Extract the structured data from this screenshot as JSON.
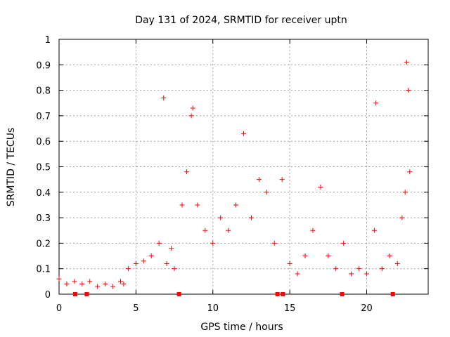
{
  "chart_data": {
    "type": "scatter",
    "title": "Day 131 of 2024, SRMTID for receiver uptn",
    "xlabel": "GPS time / hours",
    "ylabel": "SRMTID / TECUs",
    "xlim": [
      0,
      24
    ],
    "ylim": [
      0,
      1
    ],
    "x_ticks": [
      0,
      5,
      10,
      15,
      20
    ],
    "x_tick_labels": [
      "0",
      "5",
      "10",
      "15",
      "20"
    ],
    "y_ticks": [
      0,
      0.1,
      0.2,
      0.3,
      0.4,
      0.5,
      0.6,
      0.7,
      0.8,
      0.9,
      1
    ],
    "y_tick_labels": [
      "0",
      "0.1",
      "0.2",
      "0.3",
      "0.4",
      "0.5",
      "0.6",
      "0.7",
      "0.8",
      "0.9",
      "1"
    ],
    "grid": true,
    "marker": "+",
    "color": "#ff0000",
    "gap_markers_x": [
      1.05,
      1.8,
      7.8,
      14.2,
      14.55,
      18.4,
      21.7
    ],
    "series": [
      {
        "name": "SRMTID",
        "x": [
          0.0,
          0.5,
          1.0,
          1.5,
          2.0,
          2.5,
          3.0,
          3.5,
          4.0,
          4.2,
          4.5,
          5.0,
          5.5,
          6.0,
          6.5,
          6.8,
          7.0,
          7.3,
          7.5,
          8.0,
          8.3,
          8.6,
          8.7,
          9.0,
          9.5,
          10.0,
          10.5,
          11.0,
          11.5,
          12.0,
          12.5,
          13.0,
          13.5,
          14.0,
          14.5,
          15.0,
          15.5,
          16.0,
          16.5,
          17.0,
          17.5,
          18.0,
          18.5,
          19.0,
          19.5,
          20.0,
          20.5,
          20.6,
          21.0,
          21.5,
          22.0,
          22.3,
          22.5,
          22.6,
          22.7,
          22.8
        ],
        "y": [
          0.06,
          0.04,
          0.05,
          0.04,
          0.05,
          0.03,
          0.04,
          0.03,
          0.05,
          0.04,
          0.1,
          0.12,
          0.13,
          0.15,
          0.2,
          0.77,
          0.12,
          0.18,
          0.1,
          0.35,
          0.48,
          0.7,
          0.73,
          0.35,
          0.25,
          0.2,
          0.3,
          0.25,
          0.35,
          0.63,
          0.3,
          0.45,
          0.4,
          0.2,
          0.45,
          0.12,
          0.08,
          0.15,
          0.25,
          0.42,
          0.15,
          0.1,
          0.2,
          0.08,
          0.1,
          0.08,
          0.25,
          0.75,
          0.1,
          0.15,
          0.12,
          0.3,
          0.4,
          0.91,
          0.8,
          0.48
        ]
      }
    ]
  }
}
